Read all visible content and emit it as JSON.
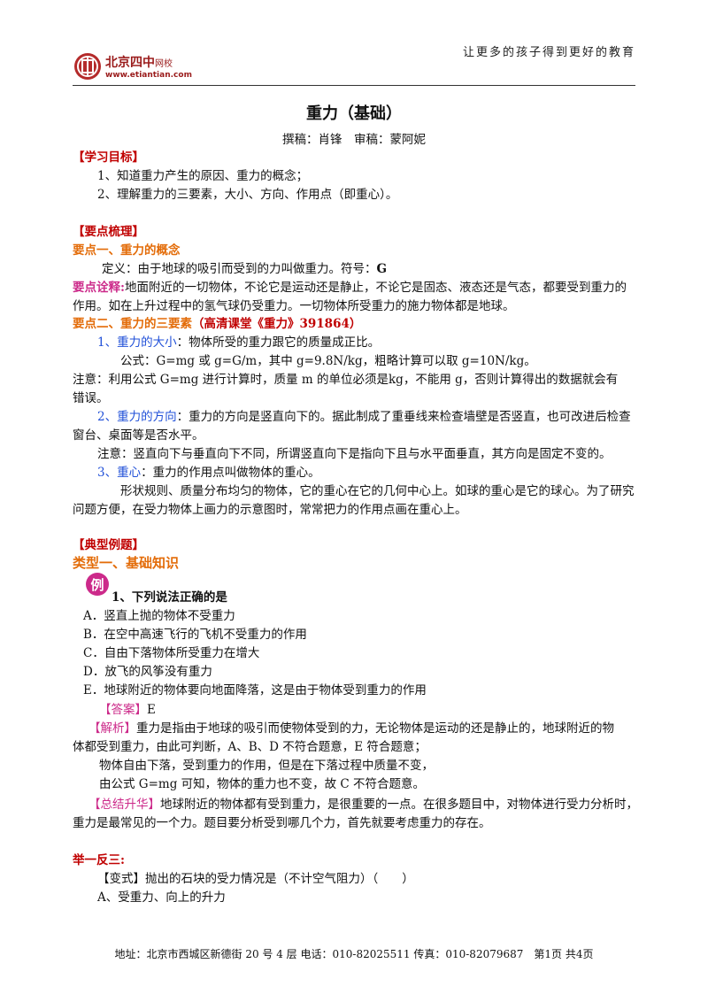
{
  "header": {
    "slogan": "让更多的孩子得到更好的教育",
    "logo_name": "北京四中",
    "logo_sub": "网校",
    "logo_url": "www.etiantian.com"
  },
  "title": "重力（基础）",
  "byline": "撰稿：肖锋　审稿：蒙阿妮",
  "goals": {
    "heading": "【学习目标】",
    "items": [
      "1、知道重力产生的原因、重力的概念；",
      "2、理解重力的三要素，大小、方向、作用点（即重心）。"
    ]
  },
  "summary": {
    "heading": "【要点梳理】",
    "point1": {
      "heading": "要点一、重力的概念",
      "definition": "定义：由于地球的吸引而受到的力叫做重力。符号：",
      "symbol": "G",
      "note_label": "要点诠释:",
      "note_line1": "地面附近的一切物体，不论它是运动还是静止，不论它是固态、液态还是气态，都要受到重力的",
      "note_line2": "作用。如在上升过程中的氢气球仍受重力。一切物体所受重力的施力物体都是地球。"
    },
    "point2": {
      "heading": "要点二、重力的三要素",
      "link": "（高清课堂《重力》391864）",
      "size_label": "1、重力的大小",
      "size_text": "：物体所受的重力跟它的质量成正比。",
      "formula": "公式：G=mg 或 g=G/m，其中 g=9.8N/kg，粗略计算可以取 g=10N/kg。",
      "caution_line1": "注意：利用公式 G=mg 进行计算时，质量 m 的单位必须是kg，不能用 g，否则计算得出的数据就会有",
      "caution_line2": "错误。",
      "direction_label": "2、重力的方向",
      "direction_text": "：重力的方向是竖直向下的。据此制成了重垂线来检查墙壁是否竖直，也可改进后检查",
      "direction_line2": "窗台、桌面等是否水平。",
      "direction_note": "注意：竖直向下与垂直向下不同，所谓竖直向下是指向下且与水平面垂直，其方向是固定不变的。",
      "center_label": "3、重心",
      "center_text": "：重力的作用点叫做物体的重心。",
      "center_line1": "形状规则、质量分布均匀的物体，它的重心在它的几何中心上。如球的重心是它的球心。为了研究",
      "center_line2": "问题方便，在受力物体上画力的示意图时，常常把力的作用点画在重心上。"
    }
  },
  "examples": {
    "heading": "【典型例题】",
    "type1": "类型一、基础知识",
    "badge": "例",
    "question": "1、下列说法正确的是",
    "options": [
      "A．竖直上抛的物体不受重力",
      "B．在空中高速飞行的飞机不受重力的作用",
      "C．自由下落物体所受重力在增大",
      "D．放飞的风筝没有重力",
      "E．地球附近的物体要向地面降落，这是由于物体受到重力的作用"
    ],
    "answer_label": "【答案】",
    "answer": "E",
    "analysis_label": "【解析】",
    "analysis_line1": "重力是指由于地球的吸引而使物体受到的力，无论物体是运动的还是静止的，地球附近的物",
    "analysis_line2": "体都受到重力，由此可判断，A、B、D 不符合题意，E 符合题意；",
    "analysis_line3": "物体自由下落，受到重力的作用，但是在下落过程中质量不变，",
    "analysis_line4": "由公式 G=mg 可知，物体的重力也不变，故 C 不符合题意。",
    "summary_label": "【总结升华】",
    "summary_line1": "地球附近的物体都有受到重力，是很重要的一点。在很多题目中，对物体进行受力分析时，",
    "summary_line2": "重力是最常见的一个力。题目要分析受到哪几个力，首先就要考虑重力的存在。",
    "practice_heading": "举一反三:",
    "variant": "【变式】抛出的石块的受力情况是（不计空气阻力）（　　）",
    "variant_option_a": "A、受重力、向上的升力"
  },
  "footer": "地址：北京市西城区新德街 20 号 4 层  电话：010-82025511  传真：010-82079687　第1页  共4页"
}
